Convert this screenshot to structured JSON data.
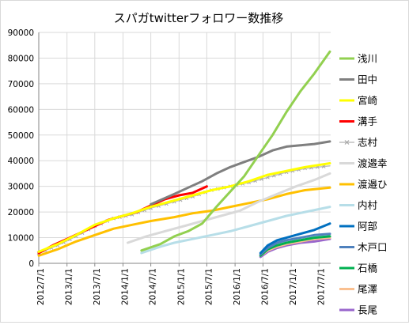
{
  "chart_data": {
    "type": "line",
    "title": "スパガtwitterフォロワー数推移",
    "xlabel": "",
    "ylabel": "",
    "ylim": [
      0,
      90000
    ],
    "y_ticks": [
      "0",
      "10000",
      "20000",
      "30000",
      "40000",
      "50000",
      "60000",
      "70000",
      "80000",
      "90000"
    ],
    "x_range": [
      "2012-07-01",
      "2017-09-15"
    ],
    "x_ticks": [
      {
        "date": "2012-07-01",
        "label": "2012/7/1"
      },
      {
        "date": "2013-01-01",
        "label": "2013/1/1"
      },
      {
        "date": "2013-07-01",
        "label": "2013/7/1"
      },
      {
        "date": "2014-01-01",
        "label": "2014/1/1"
      },
      {
        "date": "2014-07-01",
        "label": "2014/7/1"
      },
      {
        "date": "2015-01-01",
        "label": "2015/1/1"
      },
      {
        "date": "2015-07-01",
        "label": "2015/7/1"
      },
      {
        "date": "2016-01-01",
        "label": "2016/1/1"
      },
      {
        "date": "2016-07-01",
        "label": "2016/7/1"
      },
      {
        "date": "2017-01-01",
        "label": "2017/1/1"
      },
      {
        "date": "2017-07-01",
        "label": "2017/7/1"
      }
    ],
    "grid": true,
    "legend": "right",
    "series": [
      {
        "name": "浅川",
        "color": "#92d050",
        "width": 3,
        "points": [
          [
            "2014-05-01",
            5000
          ],
          [
            "2014-09-01",
            7500
          ],
          [
            "2014-12-01",
            10500
          ],
          [
            "2015-03-01",
            12500
          ],
          [
            "2015-06-01",
            15500
          ],
          [
            "2015-09-01",
            22000
          ],
          [
            "2015-12-01",
            28000
          ],
          [
            "2016-03-01",
            34000
          ],
          [
            "2016-06-01",
            42000
          ],
          [
            "2016-09-01",
            50000
          ],
          [
            "2016-12-01",
            59000
          ],
          [
            "2017-03-01",
            67000
          ],
          [
            "2017-06-01",
            74000
          ],
          [
            "2017-09-10",
            82500
          ]
        ]
      },
      {
        "name": "田中",
        "color": "#7f7f7f",
        "width": 3,
        "points": [
          [
            "2014-07-01",
            23000
          ],
          [
            "2014-12-01",
            27000
          ],
          [
            "2015-03-01",
            29500
          ],
          [
            "2015-06-01",
            32000
          ],
          [
            "2015-09-01",
            35000
          ],
          [
            "2015-12-01",
            37500
          ],
          [
            "2016-03-01",
            39500
          ],
          [
            "2016-06-01",
            41500
          ],
          [
            "2016-09-01",
            44000
          ],
          [
            "2016-12-01",
            45500
          ],
          [
            "2017-03-01",
            46000
          ],
          [
            "2017-06-01",
            46500
          ],
          [
            "2017-09-10",
            47500
          ]
        ]
      },
      {
        "name": "宮崎",
        "color": "#ffff00",
        "width": 3,
        "points": [
          [
            "2012-07-01",
            4500
          ],
          [
            "2012-11-01",
            7500
          ],
          [
            "2013-03-01",
            11000
          ],
          [
            "2013-07-01",
            15000
          ],
          [
            "2013-11-01",
            17500
          ],
          [
            "2014-03-01",
            19500
          ],
          [
            "2014-07-01",
            22000
          ],
          [
            "2014-12-01",
            24500
          ],
          [
            "2015-04-01",
            26500
          ],
          [
            "2015-08-01",
            28500
          ],
          [
            "2015-12-01",
            30000
          ],
          [
            "2016-04-01",
            32000
          ],
          [
            "2016-08-01",
            34500
          ],
          [
            "2016-12-01",
            36000
          ],
          [
            "2017-04-01",
            37500
          ],
          [
            "2017-09-10",
            39000
          ]
        ]
      },
      {
        "name": "溝手",
        "color": "#ff0000",
        "width": 3,
        "points": [
          [
            "2012-07-01",
            4000
          ],
          [
            "2012-10-01",
            7000
          ],
          [
            "2013-01-01",
            9500
          ],
          [
            "2013-04-01",
            12000
          ],
          [
            "2013-07-01",
            14500
          ],
          [
            "2013-10-01",
            17000
          ],
          [
            "2014-01-01",
            18500
          ],
          [
            "2014-04-01",
            20000
          ],
          [
            "2014-07-01",
            22500
          ],
          [
            "2014-10-01",
            25000
          ],
          [
            "2015-01-01",
            26500
          ],
          [
            "2015-04-01",
            27500
          ],
          [
            "2015-07-01",
            30000
          ]
        ]
      },
      {
        "name": "志村",
        "color": "#bfbfbf",
        "width": 1.5,
        "marker": "x",
        "points": [
          [
            "2012-07-01",
            4000
          ],
          [
            "2012-11-01",
            7000
          ],
          [
            "2013-03-01",
            10500
          ],
          [
            "2013-07-01",
            14500
          ],
          [
            "2013-11-01",
            17500
          ],
          [
            "2014-03-01",
            19000
          ],
          [
            "2014-07-01",
            21500
          ],
          [
            "2014-12-01",
            24000
          ],
          [
            "2015-04-01",
            26000
          ],
          [
            "2015-08-01",
            28500
          ],
          [
            "2015-12-01",
            30000
          ],
          [
            "2016-04-01",
            31500
          ],
          [
            "2016-08-01",
            33500
          ],
          [
            "2016-12-01",
            35500
          ],
          [
            "2017-04-01",
            37000
          ],
          [
            "2017-09-10",
            38000
          ]
        ]
      },
      {
        "name": "渡邉幸",
        "color": "#d9d9d9",
        "width": 3,
        "points": [
          [
            "2014-02-01",
            8000
          ],
          [
            "2014-06-01",
            10500
          ],
          [
            "2014-10-01",
            12500
          ],
          [
            "2015-02-01",
            14500
          ],
          [
            "2015-06-01",
            16500
          ],
          [
            "2015-10-01",
            18500
          ],
          [
            "2016-02-01",
            20500
          ],
          [
            "2016-06-01",
            24000
          ],
          [
            "2016-10-01",
            27000
          ],
          [
            "2017-02-01",
            30000
          ],
          [
            "2017-06-01",
            32500
          ],
          [
            "2017-09-10",
            35000
          ]
        ]
      },
      {
        "name": "渡邉ひ",
        "color": "#ffc000",
        "width": 3,
        "points": [
          [
            "2012-07-01",
            3000
          ],
          [
            "2012-11-01",
            5500
          ],
          [
            "2013-03-01",
            8500
          ],
          [
            "2013-07-01",
            11000
          ],
          [
            "2013-11-01",
            13500
          ],
          [
            "2014-03-01",
            15000
          ],
          [
            "2014-07-01",
            16500
          ],
          [
            "2014-12-01",
            18000
          ],
          [
            "2015-04-01",
            19500
          ],
          [
            "2015-08-01",
            20500
          ],
          [
            "2015-12-01",
            22000
          ],
          [
            "2016-04-01",
            23500
          ],
          [
            "2016-08-01",
            25000
          ],
          [
            "2016-12-01",
            27000
          ],
          [
            "2017-04-01",
            28500
          ],
          [
            "2017-09-10",
            29500
          ]
        ]
      },
      {
        "name": "内村",
        "color": "#b7dee8",
        "width": 3,
        "points": [
          [
            "2014-05-01",
            4000
          ],
          [
            "2014-09-01",
            6500
          ],
          [
            "2014-12-01",
            8000
          ],
          [
            "2015-04-01",
            9500
          ],
          [
            "2015-08-01",
            11000
          ],
          [
            "2015-12-01",
            12500
          ],
          [
            "2016-04-01",
            14500
          ],
          [
            "2016-08-01",
            16500
          ],
          [
            "2016-12-01",
            18500
          ],
          [
            "2017-04-01",
            20000
          ],
          [
            "2017-09-10",
            22000
          ]
        ]
      },
      {
        "name": "阿部",
        "color": "#0070c0",
        "width": 3,
        "points": [
          [
            "2016-06-15",
            4000
          ],
          [
            "2016-08-01",
            7000
          ],
          [
            "2016-10-01",
            9000
          ],
          [
            "2016-12-01",
            10000
          ],
          [
            "2017-03-01",
            11500
          ],
          [
            "2017-06-01",
            13000
          ],
          [
            "2017-09-10",
            15500
          ]
        ]
      },
      {
        "name": "木戸口",
        "color": "#4f81bd",
        "width": 3,
        "points": [
          [
            "2016-06-15",
            3500
          ],
          [
            "2016-08-01",
            6000
          ],
          [
            "2016-10-01",
            8000
          ],
          [
            "2016-12-01",
            9000
          ],
          [
            "2017-03-01",
            10000
          ],
          [
            "2017-06-01",
            11000
          ],
          [
            "2017-09-10",
            11500
          ]
        ]
      },
      {
        "name": "石橋",
        "color": "#00b050",
        "width": 3,
        "points": [
          [
            "2016-06-15",
            3000
          ],
          [
            "2016-08-01",
            5500
          ],
          [
            "2016-10-01",
            7000
          ],
          [
            "2016-12-01",
            8000
          ],
          [
            "2017-03-01",
            9000
          ],
          [
            "2017-06-01",
            10000
          ],
          [
            "2017-09-10",
            10500
          ]
        ]
      },
      {
        "name": "尾澤",
        "color": "#fac090",
        "width": 3,
        "points": [
          [
            "2016-06-15",
            3000
          ],
          [
            "2016-08-01",
            5000
          ],
          [
            "2016-10-01",
            6500
          ],
          [
            "2016-12-01",
            7500
          ],
          [
            "2017-03-01",
            8500
          ],
          [
            "2017-06-01",
            9500
          ],
          [
            "2017-09-10",
            10000
          ]
        ]
      },
      {
        "name": "長尾",
        "color": "#9966cc",
        "width": 3,
        "points": [
          [
            "2016-06-15",
            2500
          ],
          [
            "2016-08-01",
            4500
          ],
          [
            "2016-10-01",
            6000
          ],
          [
            "2016-12-01",
            7000
          ],
          [
            "2017-03-01",
            8000
          ],
          [
            "2017-06-01",
            8500
          ],
          [
            "2017-09-10",
            9500
          ]
        ]
      }
    ]
  }
}
